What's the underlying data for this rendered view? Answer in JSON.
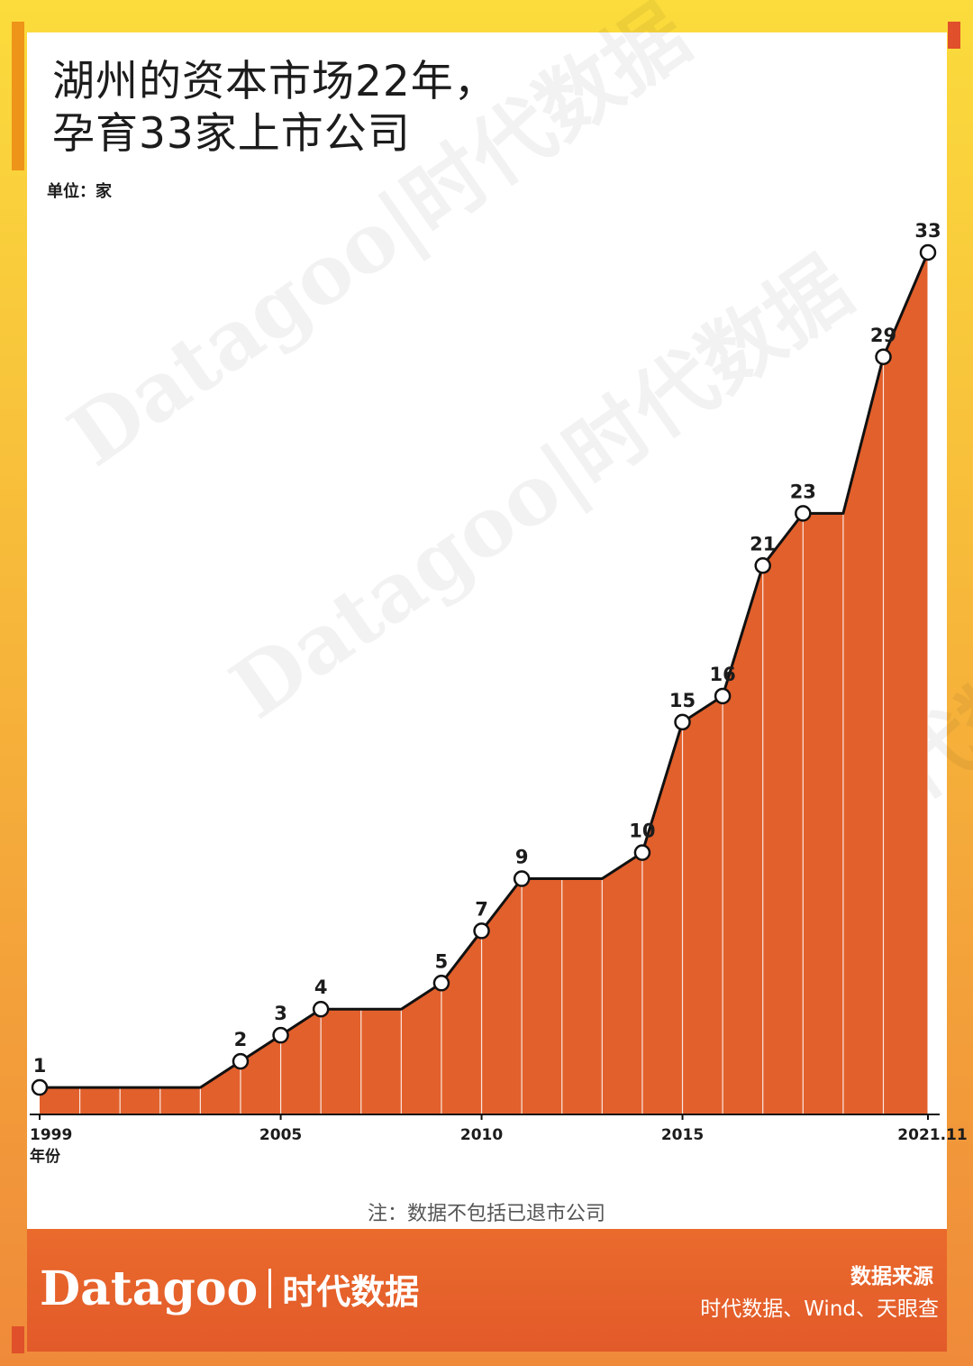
{
  "title_lines": [
    "湖州的资本市场22年，",
    "孕育33家上市公司"
  ],
  "unit": "单位：家",
  "note": "注：数据不包括已退市公司",
  "brand": {
    "en": "Datagoo",
    "cn": "时代数据"
  },
  "source": {
    "title": "数据来源",
    "text": "时代数据、Wind、天眼查"
  },
  "watermark": "Datagoo|时代数据",
  "colors": {
    "area_fill": "#e2602c",
    "line": "#111111",
    "footer": "#e25a2a",
    "frame": "#f6b33a"
  },
  "chart_data": {
    "type": "area",
    "x": [
      1999,
      2000,
      2001,
      2002,
      2003,
      2004,
      2005,
      2006,
      2007,
      2008,
      2009,
      2010,
      2011,
      2012,
      2013,
      2014,
      2015,
      2016,
      2017,
      2018,
      2019,
      2020,
      2021.11
    ],
    "values": [
      1,
      1,
      1,
      1,
      1,
      2,
      3,
      4,
      4,
      4,
      5,
      7,
      9,
      9,
      9,
      10,
      15,
      16,
      21,
      23,
      23,
      29,
      33
    ],
    "markers": [
      {
        "x": 1999,
        "value": 1,
        "label": "1"
      },
      {
        "x": 2004,
        "value": 2,
        "label": "2"
      },
      {
        "x": 2005,
        "value": 3,
        "label": "3"
      },
      {
        "x": 2006,
        "value": 4,
        "label": "4"
      },
      {
        "x": 2009,
        "value": 5,
        "label": "5"
      },
      {
        "x": 2010,
        "value": 7,
        "label": "7"
      },
      {
        "x": 2011,
        "value": 9,
        "label": "9"
      },
      {
        "x": 2014,
        "value": 10,
        "label": "10"
      },
      {
        "x": 2015,
        "value": 15,
        "label": "15"
      },
      {
        "x": 2016,
        "value": 16,
        "label": "16"
      },
      {
        "x": 2017,
        "value": 21,
        "label": "21"
      },
      {
        "x": 2018,
        "value": 23,
        "label": "23"
      },
      {
        "x": 2020,
        "value": 29,
        "label": "29"
      },
      {
        "x": 2021.11,
        "value": 33,
        "label": "33"
      }
    ],
    "x_ticks": [
      {
        "x": 1999,
        "label": "1999"
      },
      {
        "x": 2005,
        "label": "2005"
      },
      {
        "x": 2010,
        "label": "2010"
      },
      {
        "x": 2015,
        "label": "2015"
      },
      {
        "x": 2021.11,
        "label": "2021.11"
      }
    ],
    "xlabel": "年份",
    "ylim": [
      0,
      34
    ],
    "title": "湖州的资本市场22年，孕育33家上市公司",
    "ylabel": "单位：家",
    "grid": false
  }
}
